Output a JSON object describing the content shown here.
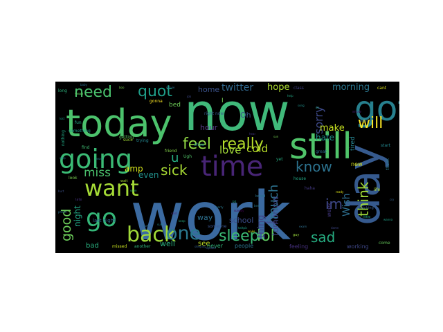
{
  "figure": {
    "background": "#000000",
    "page_background": "#ffffff"
  },
  "words": [
    {
      "text": "work",
      "color": "#3b6aa0"
    },
    {
      "text": "now",
      "color": "#40b97a"
    },
    {
      "text": "today",
      "color": "#4cc26c"
    },
    {
      "text": "day",
      "color": "#365a8e"
    },
    {
      "text": "got",
      "color": "#27808e"
    },
    {
      "text": "still",
      "color": "#50c46a"
    },
    {
      "text": "going",
      "color": "#3bbb75"
    },
    {
      "text": "time",
      "color": "#482576"
    },
    {
      "text": "want",
      "color": "#a5db36"
    },
    {
      "text": "go",
      "color": "#35b779"
    },
    {
      "text": "back",
      "color": "#a0da39"
    },
    {
      "text": "one",
      "color": "#2a788e"
    },
    {
      "text": "sleep",
      "color": "#3bbb75"
    },
    {
      "text": "lol",
      "color": "#5ec962"
    },
    {
      "text": "feel",
      "color": "#90d743"
    },
    {
      "text": "really",
      "color": "#b5de2b"
    },
    {
      "text": "quot",
      "color": "#1f9e89"
    },
    {
      "text": "need",
      "color": "#4ac16d"
    },
    {
      "text": "will",
      "color": "#fde725"
    },
    {
      "text": "think",
      "color": "#a0da39"
    },
    {
      "text": "know",
      "color": "#2c728e"
    },
    {
      "text": "sad",
      "color": "#26ad81"
    },
    {
      "text": "im",
      "color": "#3e4989"
    },
    {
      "text": "much",
      "color": "#2c728e"
    },
    {
      "text": "sick",
      "color": "#a8db34"
    },
    {
      "text": "good",
      "color": "#6ccd5a"
    },
    {
      "text": "miss",
      "color": "#4ac16d"
    },
    {
      "text": "u",
      "color": "#27ad81"
    },
    {
      "text": "sorry",
      "color": "#3e4a89"
    },
    {
      "text": "Wish",
      "color": "#2e6e8e"
    },
    {
      "text": "twitter",
      "color": "#31688e"
    },
    {
      "text": "hope",
      "color": "#addc30"
    },
    {
      "text": "morning",
      "color": "#2a768e"
    },
    {
      "text": "love",
      "color": "#a2da37"
    },
    {
      "text": "cold",
      "color": "#b8de29"
    },
    {
      "text": "home",
      "color": "#3b528b"
    },
    {
      "text": "make",
      "color": "#c5e021"
    },
    {
      "text": "hate",
      "color": "#20928c"
    },
    {
      "text": "tomorrow",
      "color": "#3f4788"
    },
    {
      "text": "thing",
      "color": "#414487"
    },
    {
      "text": "amp",
      "color": "#d2e21b"
    },
    {
      "text": "even",
      "color": "#21918c"
    },
    {
      "text": "night",
      "color": "#21a585"
    },
    {
      "text": "school",
      "color": "#3d4d8a"
    },
    {
      "text": "way",
      "color": "#2d708e"
    },
    {
      "text": "well",
      "color": "#2ab07f"
    },
    {
      "text": "bad",
      "color": "#29af7f"
    },
    {
      "text": "see",
      "color": "#c0df25"
    },
    {
      "text": "never",
      "color": "#31b57b"
    },
    {
      "text": "people",
      "color": "#2c738e"
    },
    {
      "text": "feeling",
      "color": "#46307e"
    },
    {
      "text": "working",
      "color": "#3f4889"
    },
    {
      "text": "new",
      "color": "#d8e219"
    },
    {
      "text": "tired",
      "color": "#26828e"
    },
    {
      "text": "week",
      "color": "#443a83"
    },
    {
      "text": "hour",
      "color": "#5c3c8d"
    },
    {
      "text": "Oh",
      "color": "#38588c"
    },
    {
      "text": "bed",
      "color": "#6ece58"
    },
    {
      "text": "I",
      "color": "#75d054"
    },
    {
      "text": "last night",
      "color": "#30698e"
    },
    {
      "text": "right now",
      "color": "#365c8d"
    },
    {
      "text": "missed",
      "color": "#c7e020"
    },
    {
      "text": "another",
      "color": "#2fb47c"
    },
    {
      "text": "come",
      "color": "#67cc5c"
    },
    {
      "text": "life",
      "color": "#b2dd2d"
    },
    {
      "text": "thank",
      "color": "#2a788e"
    },
    {
      "text": "house",
      "color": "#22a884"
    },
    {
      "text": "haha",
      "color": "#443983"
    },
    {
      "text": "friend",
      "color": "#85d54a"
    },
    {
      "text": "show",
      "color": "#23898e"
    },
    {
      "text": "Ugh",
      "color": "#52c569"
    },
    {
      "text": "yet",
      "color": "#26ad81"
    },
    {
      "text": "someone",
      "color": "#3a548c"
    },
    {
      "text": "trying",
      "color": "#24868e"
    },
    {
      "text": "suck",
      "color": "#a2da37"
    },
    {
      "text": "fun",
      "color": "#22a785"
    },
    {
      "text": "gonna",
      "color": "#fde725"
    },
    {
      "text": "find",
      "color": "#3fbc73"
    },
    {
      "text": "getting",
      "color": "#5ec962"
    },
    {
      "text": "something",
      "color": "#1f9a8a"
    },
    {
      "text": "long",
      "color": "#2db27d"
    },
    {
      "text": "class",
      "color": "#414287"
    },
    {
      "text": "cant",
      "color": "#dde318"
    },
    {
      "text": "look",
      "color": "#7ad151"
    },
    {
      "text": "great",
      "color": "#2f6c8e"
    },
    {
      "text": "snow",
      "color": "#481a6c"
    },
    {
      "text": "watching",
      "color": "#365d8d"
    },
    {
      "text": "early",
      "color": "#31688e"
    },
    {
      "text": "start",
      "color": "#24878e"
    },
    {
      "text": "little",
      "color": "#1fa287"
    },
    {
      "text": "nothing",
      "color": "#22a884"
    },
    {
      "text": "yeah",
      "color": "#63cb5f"
    },
    {
      "text": "baby",
      "color": "#2e6f8e"
    },
    {
      "text": "guy",
      "color": "#9bd93c"
    },
    {
      "text": "late",
      "color": "#46327e"
    },
    {
      "text": "bored",
      "color": "#2b758e"
    },
    {
      "text": "sleeping",
      "color": "#355e8d"
    },
    {
      "text": "lost",
      "color": "#1e9c89"
    },
    {
      "text": "stop",
      "color": "#26828e"
    },
    {
      "text": "hurt",
      "color": "#3b518b"
    },
    {
      "text": "phone",
      "color": "#2d708e"
    },
    {
      "text": "keep",
      "color": "#27ad81"
    },
    {
      "text": "exam",
      "color": "#2e6f8e"
    },
    {
      "text": "sunday",
      "color": "#440154"
    },
    {
      "text": "party",
      "color": "#297a8e"
    },
    {
      "text": "bit",
      "color": "#21a585"
    },
    {
      "text": "best",
      "color": "#2a788e"
    },
    {
      "text": "weekend",
      "color": "#46327e"
    },
    {
      "text": "wanna",
      "color": "#1fa088"
    },
    {
      "text": "cry",
      "color": "#34618d"
    },
    {
      "text": "wait",
      "color": "#a5db36"
    },
    {
      "text": "soon",
      "color": "#31b57b"
    },
    {
      "text": "wake",
      "color": "#d5e21a"
    },
    {
      "text": "hurts",
      "color": "#2e6e8e"
    },
    {
      "text": "sure",
      "color": "#238a8d"
    },
    {
      "text": "said",
      "color": "#482677"
    },
    {
      "text": "twitpic",
      "color": "#1f9e89"
    },
    {
      "text": "damn",
      "color": "#3f4788"
    },
    {
      "text": "ready",
      "color": "#dde318"
    },
    {
      "text": "update",
      "color": "#39568c"
    },
    {
      "text": "boo",
      "color": "#7ad151"
    },
    {
      "text": "movie",
      "color": "#2c718e"
    },
    {
      "text": "job",
      "color": "#3e4989"
    },
    {
      "text": "help",
      "color": "#22a884"
    },
    {
      "text": "hear",
      "color": "#453781"
    },
    {
      "text": "sun",
      "color": "#75d054"
    },
    {
      "text": "song",
      "color": "#21918c"
    },
    {
      "text": "ok",
      "color": "#2ab07f"
    },
    {
      "text": "head",
      "color": "#2a778e"
    }
  ]
}
